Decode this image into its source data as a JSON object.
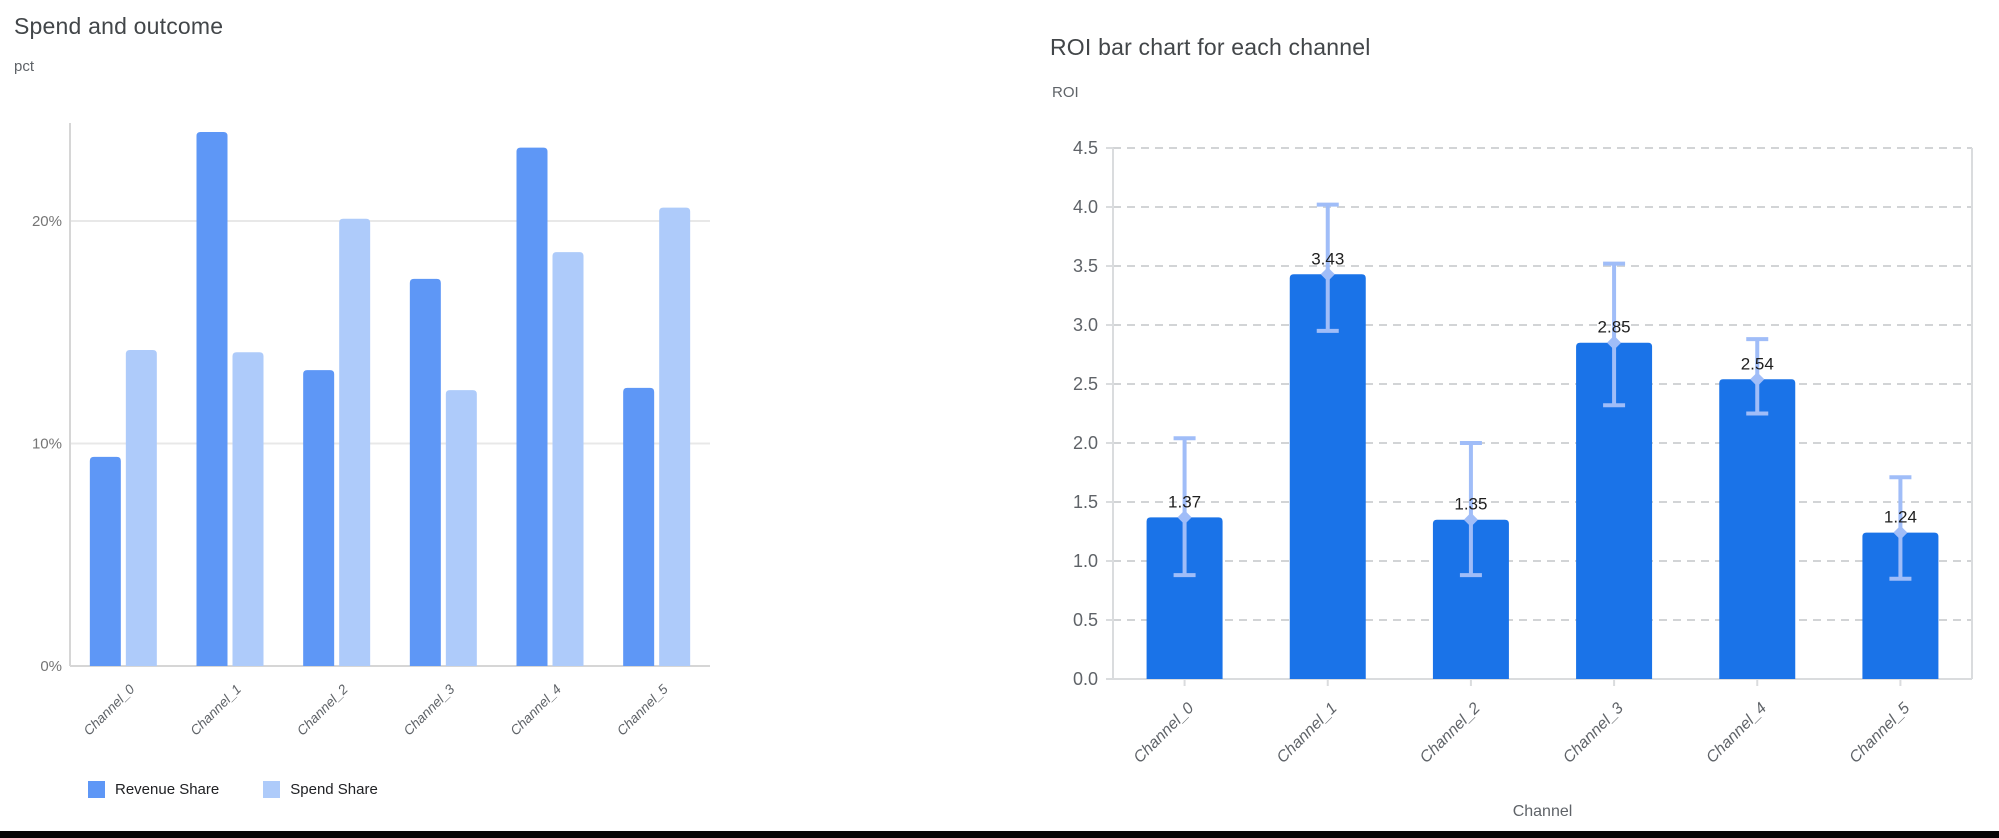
{
  "page": {
    "background_color": "#ffffff",
    "bottom_edge_color": "#050505"
  },
  "left_chart": {
    "title": "Spend and outcome",
    "y_axis_unit": "pct",
    "legend": [
      {
        "label": "Revenue Share",
        "color": "#5e97f6"
      },
      {
        "label": "Spend Share",
        "color": "#aecbfa"
      }
    ]
  },
  "right_chart": {
    "title": "ROI bar chart for each channel",
    "y_axis_unit": "ROI",
    "x_axis_title": "Channel"
  },
  "chart_data": [
    {
      "type": "bar",
      "title": "Spend and outcome",
      "ylabel": "pct",
      "xlabel": "",
      "categories": [
        "Channel_0",
        "Channel_1",
        "Channel_2",
        "Channel_3",
        "Channel_4",
        "Channel_5"
      ],
      "series": [
        {
          "name": "Revenue Share",
          "color": "#5e97f6",
          "values": [
            9.4,
            24.0,
            13.3,
            17.4,
            23.3,
            12.5
          ]
        },
        {
          "name": "Spend Share",
          "color": "#aecbfa",
          "values": [
            14.2,
            14.1,
            20.1,
            12.4,
            18.6,
            20.6
          ]
        }
      ],
      "y_tick_values": [
        0,
        10,
        20
      ],
      "y_tick_labels": [
        "0%",
        "10%",
        "20%"
      ],
      "ylim": [
        0,
        26.1
      ],
      "grid": "horizontal-solid",
      "legend_position": "bottom",
      "colors": {
        "gridline": "#e8e8e8",
        "axis_line": "#d6d6d6",
        "tick_label": "#757575",
        "category_label": "#5f6368"
      }
    },
    {
      "type": "bar",
      "title": "ROI bar chart for each channel",
      "ylabel": "ROI",
      "xlabel": "Channel",
      "categories": [
        "Channel_0",
        "Channel_1",
        "Channel_2",
        "Channel_3",
        "Channel_4",
        "Channel_5"
      ],
      "values": [
        1.37,
        3.43,
        1.35,
        2.85,
        2.54,
        1.24
      ],
      "data_labels": [
        "1.37",
        "3.43",
        "1.35",
        "2.85",
        "2.54",
        "1.24"
      ],
      "error_low": [
        0.88,
        2.95,
        0.88,
        2.32,
        2.25,
        0.85
      ],
      "error_high": [
        2.04,
        4.02,
        2.0,
        3.52,
        2.88,
        1.71
      ],
      "y_tick_values": [
        0.0,
        0.5,
        1.0,
        1.5,
        2.0,
        2.5,
        3.0,
        3.5,
        4.0,
        4.5
      ],
      "y_tick_labels": [
        "0.0",
        "0.5",
        "1.0",
        "1.5",
        "2.0",
        "2.5",
        "3.0",
        "3.5",
        "4.0",
        "4.5"
      ],
      "ylim": [
        0,
        4.5
      ],
      "grid": "horizontal-dashed",
      "legend_position": "none",
      "bar_color": "#1a73e8",
      "error_bar_color": "#a0bdf8",
      "data_label_color": "#1f1f1f",
      "colors": {
        "gridline": "#d2d4d6",
        "axis_line": "#dadcde",
        "tick_label": "#5f6368",
        "category_label": "#5f6368",
        "axis_title": "#5f6368"
      }
    }
  ]
}
